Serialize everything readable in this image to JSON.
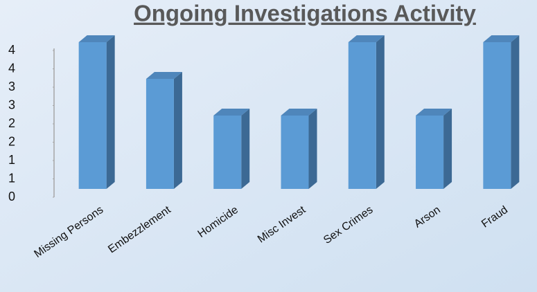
{
  "chart_data": {
    "type": "bar",
    "title": "Ongoing Investigations Activity",
    "categories": [
      "Missing Persons",
      "Embezzlement",
      "Homicide",
      "Misc Invest",
      "Sex Crimes",
      "Arson",
      "Fraud"
    ],
    "values": [
      4,
      3,
      2,
      2,
      4,
      2,
      4
    ],
    "color": "#5b9bd5",
    "ylim": [
      0,
      4
    ],
    "yticks": [
      0,
      {
        "value": 0.5,
        "label": "1"
      },
      1,
      {
        "value": 1.5,
        "label": "2"
      },
      2,
      {
        "value": 2.5,
        "label": "3"
      },
      3,
      {
        "value": 3.5,
        "label": "4"
      },
      4
    ],
    "grid": false
  }
}
